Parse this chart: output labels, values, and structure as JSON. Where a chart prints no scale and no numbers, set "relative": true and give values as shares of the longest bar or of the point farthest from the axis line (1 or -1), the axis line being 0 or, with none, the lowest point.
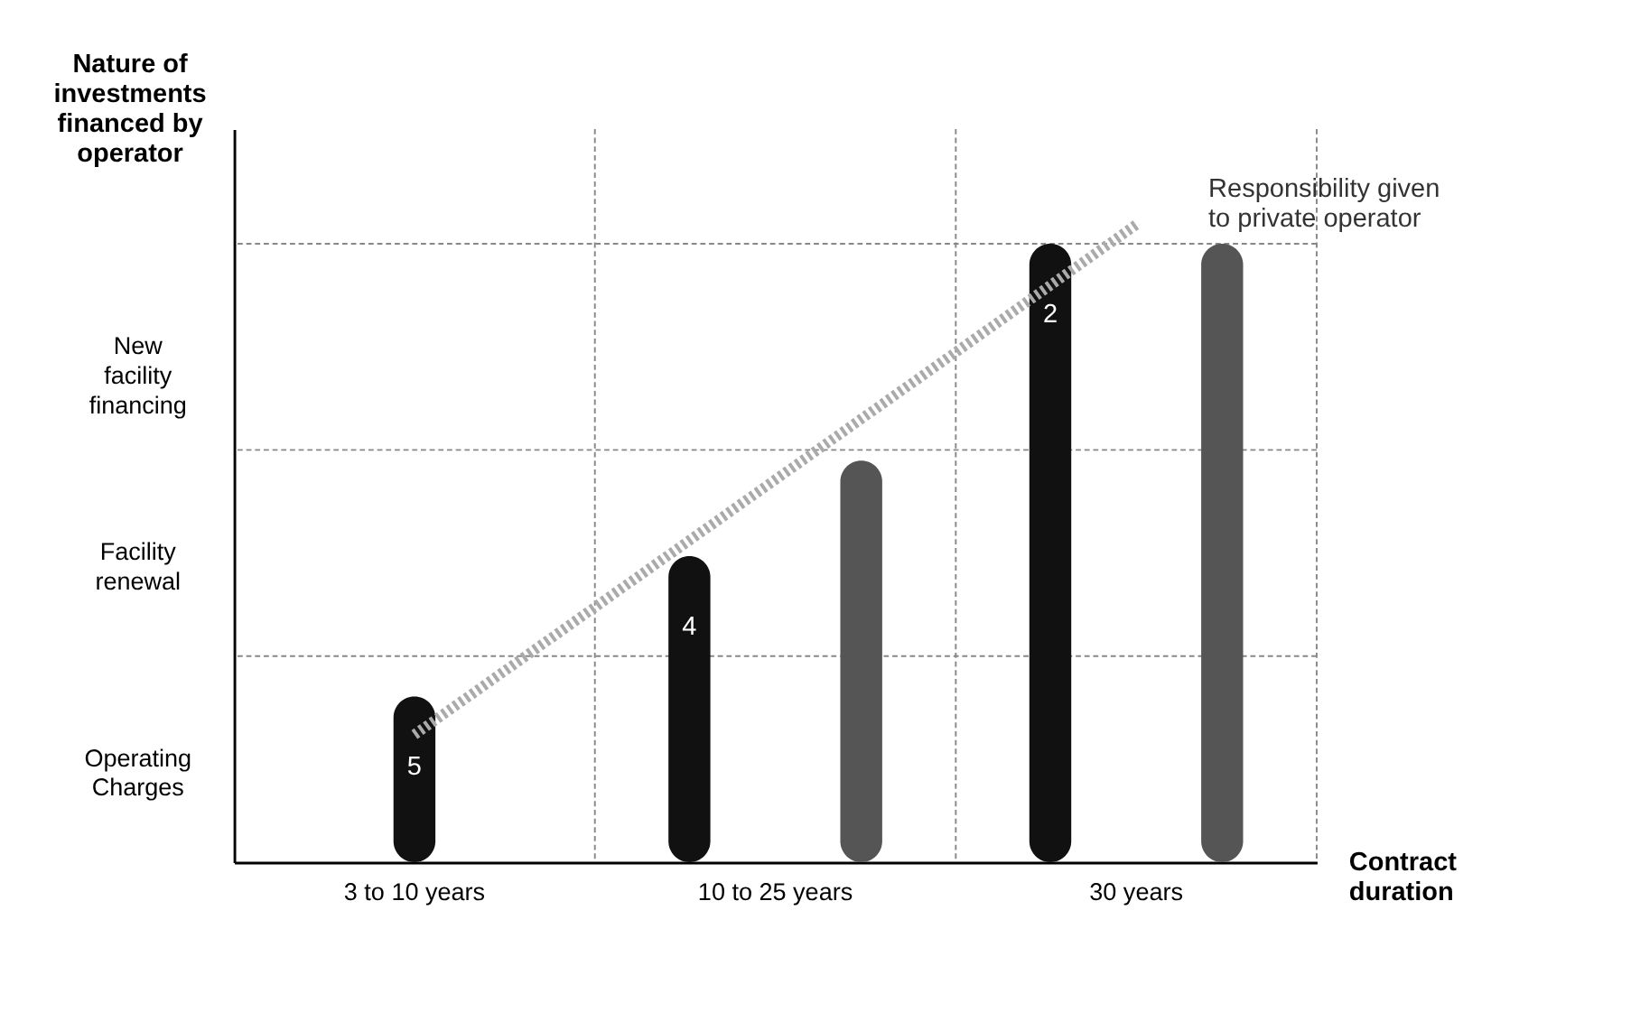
{
  "chart_data": {
    "type": "bar",
    "xlabel": "Contract duration",
    "ylabel": "Nature of investments financed by operator",
    "categories": [
      "3 to 10 years",
      "10 to 25 years",
      "30 years"
    ],
    "relative": true,
    "grid": true,
    "series": [
      {
        "color": "#111111",
        "values": [
          0.26,
          0.48,
          0.97
        ]
      },
      {
        "color": "#555555",
        "values": [
          null,
          0.63,
          0.97
        ]
      },
      {
        "type": "line",
        "color": "#aaaaaa",
        "line_style": "dotted",
        "x": [
          "3 to 10 years",
          "30 years"
        ],
        "values": [
          0.2,
          1
        ]
      }
    ],
    "annotations": [
      "Operating Charges",
      "Facility renewal",
      "New facility financing",
      "5",
      "4",
      "2",
      "Responsibility given to private operator"
    ]
  }
}
